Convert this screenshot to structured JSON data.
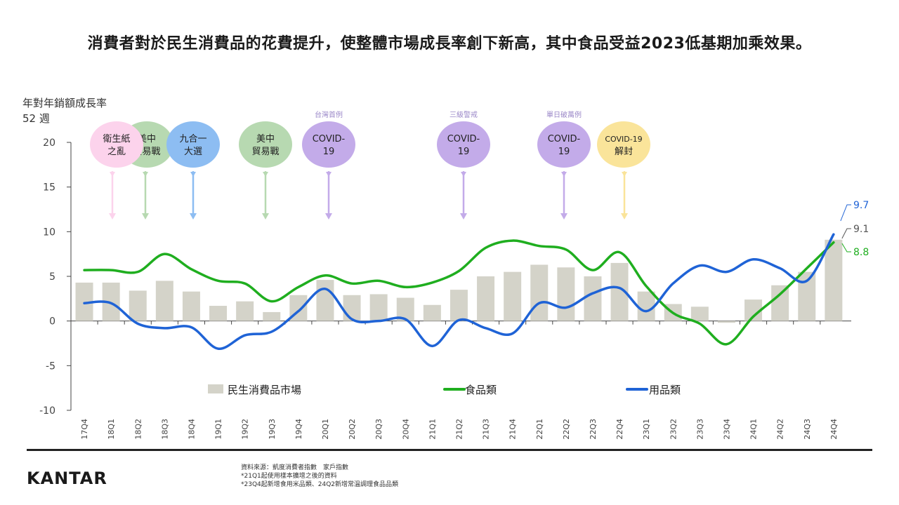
{
  "title": "消費者對於民生消費品的花費提升，使整體市場成長率創下新高，其中食品受益2023低基期加乘效果。",
  "y_caption": [
    "年對年銷額成長率",
    "52 週"
  ],
  "logo": "KANTAR",
  "source_lines": [
    "資料來源：凱度消費者指數　家戶指數",
    "*21Q1起使用樣本擴增之後的資料",
    "*23Q4起新增食用米品類、24Q2新增常溫調理食品品類"
  ],
  "colors": {
    "bar": "#d4d3c9",
    "food": "#1fae1f",
    "goods": "#1f63d6"
  },
  "chart_data": {
    "type": "bar",
    "categories": [
      "17Q4",
      "18Q1",
      "18Q2",
      "18Q3",
      "18Q4",
      "19Q1",
      "19Q2",
      "19Q3",
      "19Q4",
      "20Q1",
      "20Q2",
      "20Q3",
      "20Q4",
      "21Q1",
      "21Q2",
      "21Q3",
      "21Q4",
      "22Q1",
      "22Q2",
      "22Q3",
      "22Q4",
      "23Q1",
      "23Q2",
      "23Q3",
      "23Q4",
      "24Q1",
      "24Q2",
      "24Q3",
      "24Q4"
    ],
    "ylim": [
      -10,
      20
    ],
    "yticks": [
      -10,
      -5,
      0,
      5,
      10,
      15,
      20
    ],
    "grid": false,
    "legend_position": "bottom-inside",
    "series": [
      {
        "name": "民生消費品市場",
        "type": "bar",
        "color": "#d4d3c9",
        "values": [
          4.3,
          4.3,
          3.4,
          4.5,
          3.3,
          1.7,
          2.2,
          1.0,
          2.9,
          4.6,
          2.9,
          3.0,
          2.6,
          1.8,
          3.5,
          5.0,
          5.5,
          6.3,
          6.0,
          5.0,
          6.5,
          3.3,
          1.9,
          1.6,
          -0.2,
          2.4,
          4.0,
          5.5,
          9.1
        ]
      },
      {
        "name": "食品類",
        "type": "line",
        "color": "#1fae1f",
        "values": [
          5.7,
          5.7,
          5.5,
          7.5,
          5.8,
          4.5,
          4.2,
          2.2,
          3.8,
          5.1,
          4.2,
          4.5,
          3.8,
          4.3,
          5.6,
          8.2,
          9.0,
          8.4,
          8.0,
          5.7,
          7.7,
          3.9,
          0.9,
          -0.3,
          -2.6,
          0.5,
          3.0,
          5.9,
          8.8
        ]
      },
      {
        "name": "用品類",
        "type": "line",
        "color": "#1f63d6",
        "values": [
          2.0,
          2.0,
          -0.3,
          -0.8,
          -0.7,
          -3.1,
          -1.6,
          -1.2,
          1.1,
          3.6,
          0.2,
          0.0,
          0.2,
          -2.8,
          0.1,
          -0.8,
          -1.4,
          2.0,
          1.5,
          3.1,
          3.7,
          1.1,
          4.2,
          6.2,
          5.5,
          6.9,
          5.9,
          4.5,
          9.7
        ]
      }
    ],
    "end_labels": [
      {
        "series": "用品類",
        "text": "9.7"
      },
      {
        "series": "民生消費品市場",
        "text": "9.1"
      },
      {
        "series": "食品類",
        "text": "8.8"
      }
    ],
    "events": [
      {
        "text": [
          "衛生紙",
          "之亂"
        ],
        "top_label": "",
        "color": "#fcd3ec",
        "category": "18Q1"
      },
      {
        "text": [
          "美中",
          "貿易戰"
        ],
        "top_label": "",
        "color": "#b7d9b1",
        "category": "18Q2"
      },
      {
        "text": [
          "九合一",
          "大選"
        ],
        "top_label": "",
        "color": "#8dbdf2",
        "category": "18Q4"
      },
      {
        "text": [
          "美中",
          "貿易戰"
        ],
        "top_label": "",
        "color": "#b7d9b1",
        "category": "19Q3"
      },
      {
        "text": [
          "COVID-",
          "19"
        ],
        "top_label": "台灣首例",
        "color": "#c3abe9",
        "category": "20Q1"
      },
      {
        "text": [
          "COVID-",
          "19"
        ],
        "top_label": "三級警戒",
        "color": "#c3abe9",
        "category": "21Q2"
      },
      {
        "text": [
          "COVID-",
          "19"
        ],
        "top_label": "單日破萬例",
        "color": "#c3abe9",
        "category": "22Q2"
      },
      {
        "text": [
          "COVID-19",
          "解封"
        ],
        "top_label": "",
        "color": "#fae49a",
        "category": "22Q4"
      }
    ]
  }
}
